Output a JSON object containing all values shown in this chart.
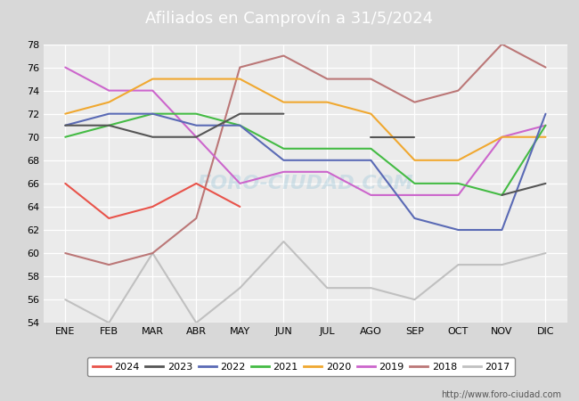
{
  "title": "Afiliados en Camprovín a 31/5/2024",
  "title_color": "#ffffff",
  "title_bg_color": "#3399cc",
  "months": [
    "ENE",
    "FEB",
    "MAR",
    "ABR",
    "MAY",
    "JUN",
    "JUL",
    "AGO",
    "SEP",
    "OCT",
    "NOV",
    "DIC"
  ],
  "series": {
    "2024": [
      66,
      63,
      64,
      66,
      64,
      null,
      null,
      null,
      null,
      null,
      null,
      null
    ],
    "2023": [
      71,
      71,
      70,
      70,
      72,
      72,
      null,
      70,
      70,
      null,
      65,
      66
    ],
    "2022": [
      71,
      72,
      72,
      71,
      71,
      68,
      68,
      68,
      63,
      62,
      62,
      72
    ],
    "2021": [
      70,
      71,
      72,
      72,
      71,
      69,
      69,
      69,
      66,
      66,
      65,
      71
    ],
    "2020": [
      72,
      73,
      75,
      75,
      75,
      73,
      73,
      72,
      68,
      68,
      70,
      70
    ],
    "2019": [
      76,
      74,
      74,
      70,
      66,
      67,
      67,
      65,
      65,
      65,
      70,
      71
    ],
    "2018": [
      60,
      59,
      60,
      63,
      76,
      77,
      75,
      75,
      73,
      74,
      78,
      76
    ],
    "2017": [
      56,
      54,
      60,
      54,
      57,
      61,
      57,
      57,
      56,
      59,
      59,
      60
    ]
  },
  "series_colors": {
    "2024": "#e8534a",
    "2023": "#555555",
    "2022": "#5a6ab5",
    "2021": "#44bb44",
    "2020": "#f0a830",
    "2019": "#cc66cc",
    "2018": "#bb7777",
    "2017": "#c0c0c0"
  },
  "ylim": [
    54,
    78
  ],
  "yticks": [
    54,
    56,
    58,
    60,
    62,
    64,
    66,
    68,
    70,
    72,
    74,
    76,
    78
  ],
  "bg_color": "#d8d8d8",
  "plot_bg_color": "#ebebeb",
  "grid_color": "#ffffff",
  "watermark": "FORO-CIUDAD.COM",
  "url": "http://www.foro-ciudad.com"
}
